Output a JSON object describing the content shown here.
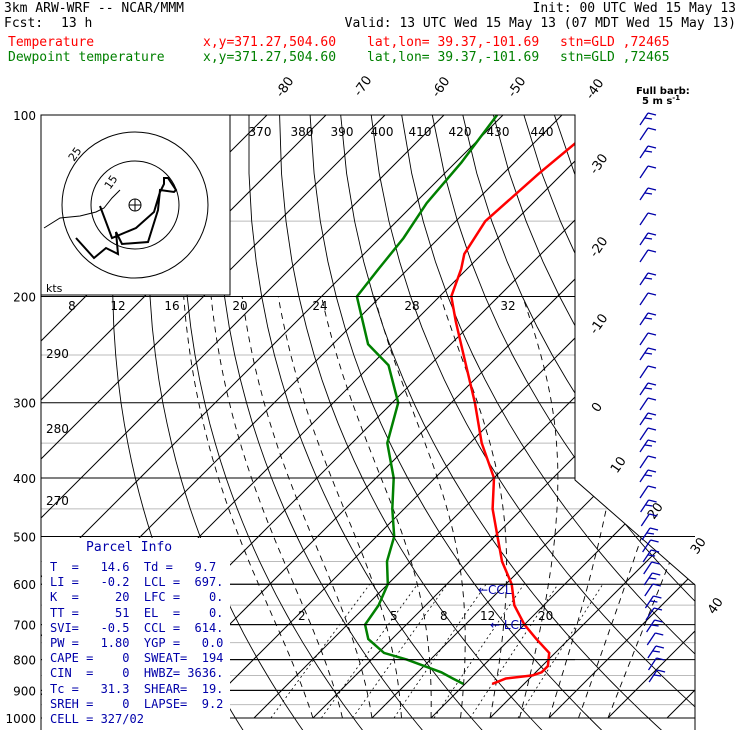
{
  "header": {
    "model": "3km ARW-WRF -- NCAR/MMM",
    "init": "Init: 00 UTC Wed 15 May 13",
    "fcst_label": "Fcst:",
    "fcst_value": "13 h",
    "valid": "Valid: 13 UTC Wed 15 May 13 (07 MDT Wed 15 May 13)",
    "temp_label": "Temperature",
    "dew_label": "Dewpoint temperature",
    "xy": "x,y=371.27,504.60",
    "latlon": "lat,lon= 39.37,-101.69",
    "stn": "stn=GLD ,72465",
    "temp_color": "#ff0000",
    "dew_color": "#008000"
  },
  "barb_legend": {
    "line1": "Full barb:",
    "line2": "5 m s",
    "sup": "-1"
  },
  "hodograph": {
    "units": "kts",
    "ring_labels": [
      "25",
      "15"
    ],
    "speed_ticks": [
      "8",
      "12",
      "16",
      "20",
      "24",
      "28",
      "32"
    ],
    "theta_labels": [
      "370",
      "380",
      "390",
      "400",
      "410",
      "420",
      "430",
      "440"
    ]
  },
  "chart_data": {
    "type": "skew-t",
    "pressure_levels": [
      100,
      200,
      300,
      400,
      500,
      600,
      700,
      800,
      900,
      1000
    ],
    "isotherm_labels": [
      "-80",
      "-70",
      "-60",
      "-50",
      "-40",
      "-30",
      "-20",
      "-10",
      "0",
      "10",
      "20",
      "30",
      "40"
    ],
    "theta_labels_lower": [
      "290",
      "280",
      "270"
    ],
    "mixing_ratio_labels": [
      "2",
      "5",
      "8",
      "12",
      "20"
    ],
    "temperature": {
      "p": [
        878,
        860,
        850,
        840,
        820,
        780,
        740,
        700,
        650,
        600,
        550,
        500,
        450,
        400,
        350,
        300,
        250,
        220,
        200,
        180,
        170,
        150,
        125,
        100
      ],
      "t": [
        14.6,
        16,
        20,
        21,
        21,
        19,
        14.5,
        10,
        5,
        1,
        -4.5,
        -9.5,
        -15,
        -20,
        -28,
        -36,
        -46,
        -53,
        -58,
        -61,
        -63,
        -65,
        -64,
        -62
      ]
    },
    "dewpoint": {
      "p": [
        878,
        860,
        840,
        800,
        780,
        740,
        700,
        650,
        600,
        550,
        500,
        450,
        400,
        350,
        300,
        260,
        240,
        200,
        180,
        160,
        140,
        120,
        100
      ],
      "td": [
        9.7,
        7,
        4,
        -4,
        -9,
        -14,
        -17,
        -18,
        -20,
        -24,
        -27,
        -32,
        -37,
        -44,
        -49,
        -57,
        -64,
        -74,
        -75,
        -76,
        -78,
        -79,
        -81
      ]
    },
    "annotations": [
      "CCL",
      "LCL"
    ]
  },
  "parcel_info": {
    "title": "Parcel Info",
    "lines": [
      "T  =   14.6  Td =   9.7",
      "LI =   -0.2  LCL =  697.",
      "K  =     20  LFC =    0.",
      "TT =     51  EL  =    0.",
      "SVI=   -0.5  CCL =  614.",
      "PW =   1.80  YGP =   0.0",
      "CAPE =    0  SWEAT=  194",
      "CIN  =    0  HWBZ= 3636.",
      "Tc =   31.3  SHEAR=  19.",
      "SREH =    0  LAPSE=  9.2",
      "CELL = 327/02"
    ]
  }
}
